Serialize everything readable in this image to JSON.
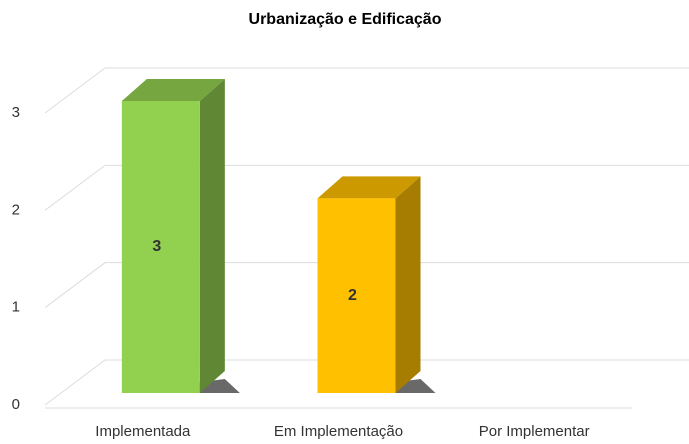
{
  "chart_data": {
    "type": "bar3d",
    "title": "Urbanização e Edificação",
    "categories": [
      "Implementada",
      "Em Implementação",
      "Por Implementar"
    ],
    "values": [
      3,
      2,
      0
    ],
    "colors": [
      "#92d050",
      "#ffc000",
      null
    ],
    "ylim": [
      0,
      3
    ],
    "yticks": [
      0,
      1,
      2,
      3
    ],
    "grid": true
  }
}
